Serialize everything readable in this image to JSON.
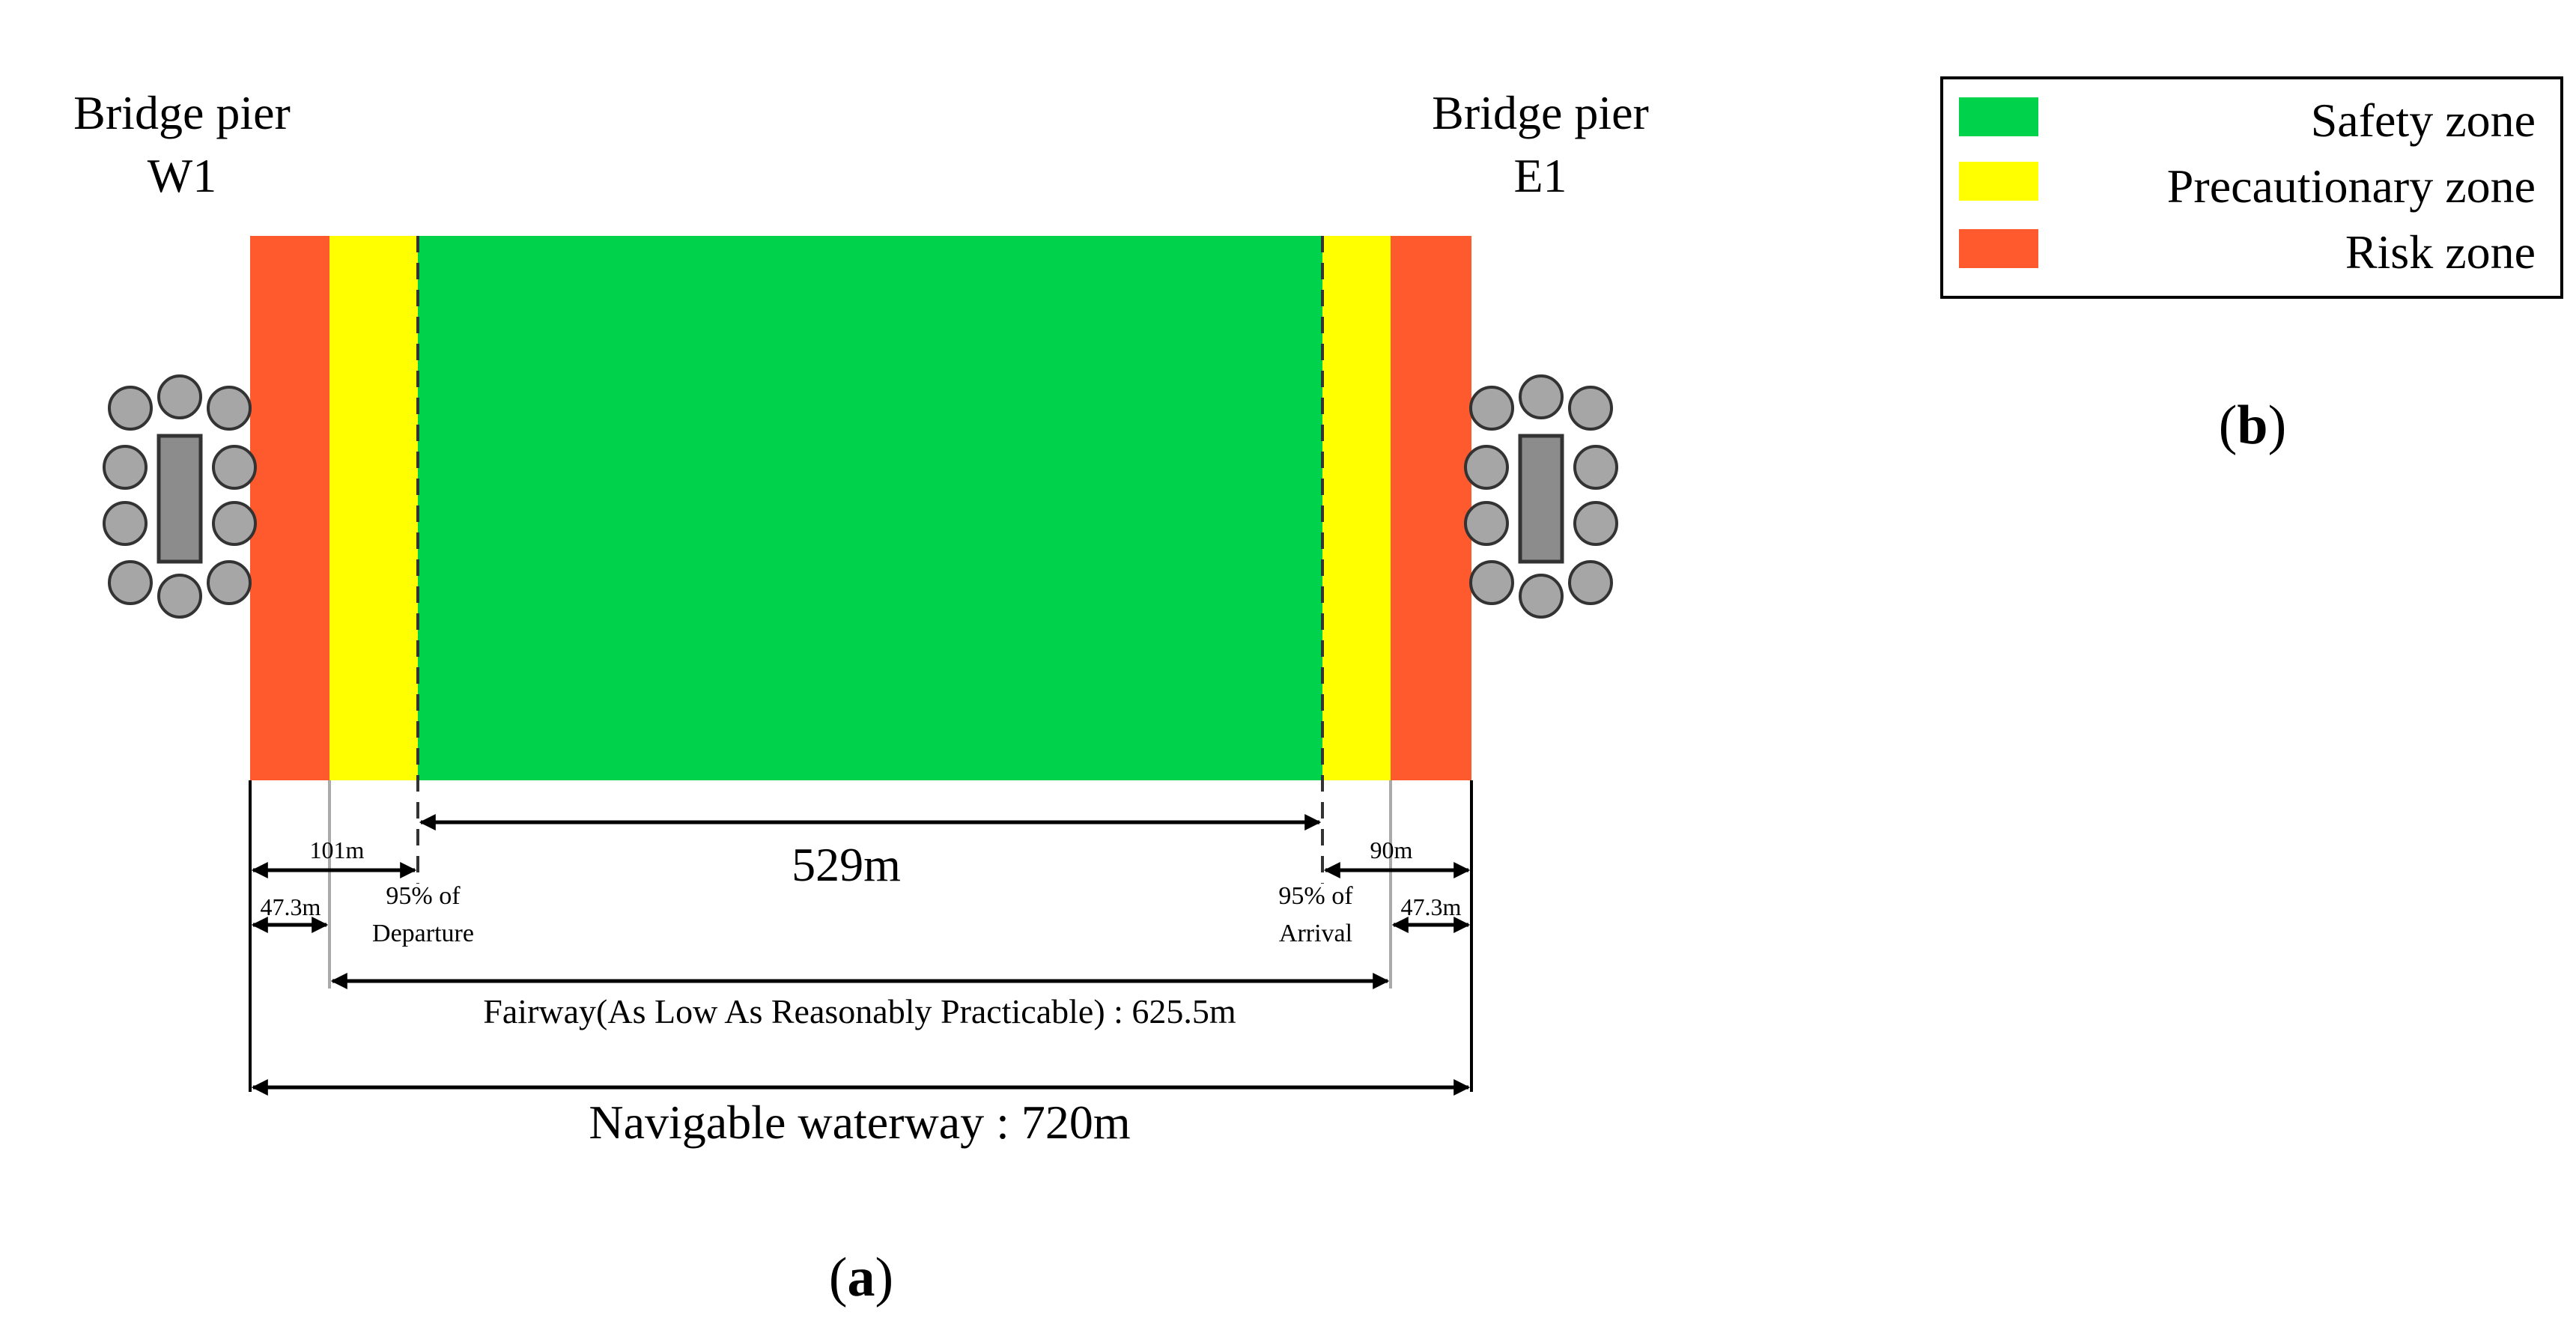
{
  "pier_west": {
    "title": "Bridge pier",
    "id": "W1"
  },
  "pier_east": {
    "title": "Bridge pier",
    "id": "E1"
  },
  "zones": {
    "risk": "#ff5a2d",
    "precaution": "#ffff00",
    "safety": "#00d24b"
  },
  "pier_colors": {
    "pile": "#a6a6a6",
    "cap": "#8c8c8c",
    "outline": "#333333"
  },
  "dimensions": {
    "left_offset": "101m",
    "left_risk": "47.3m",
    "departure_line1": "95% of",
    "departure_line2": "Departure",
    "safety_width": "529m",
    "right_offset": "90m",
    "right_risk": "47.3m",
    "arrival_line1": "95% of",
    "arrival_line2": "Arrival",
    "fairway": "Fairway(As Low As Reasonably Practicable) : 625.5m",
    "waterway": "Navigable waterway : 720m"
  },
  "legend": {
    "items": [
      {
        "label": "Safety zone",
        "color": "#00d24b"
      },
      {
        "label": "Precautionary zone",
        "color": "#ffff00"
      },
      {
        "label": "Risk zone",
        "color": "#ff5a2d"
      }
    ]
  },
  "panel_labels": {
    "a": "a",
    "b": "b"
  }
}
